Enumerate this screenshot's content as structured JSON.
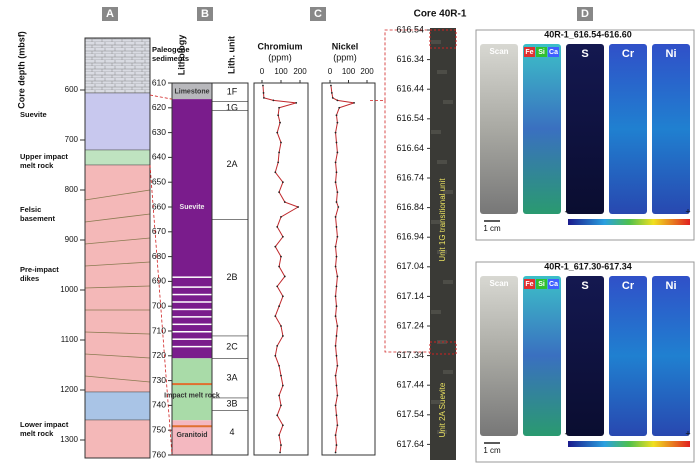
{
  "panel_a": {
    "label": "A",
    "axis_title": "Core depth (mbsf)",
    "ticks": [
      600,
      700,
      800,
      900,
      1000,
      1100,
      1200,
      1300
    ],
    "units": [
      "Paleogene sediments",
      "Suevite",
      "Upper impact melt rock",
      "Felsic basement",
      "Pre-impact dikes",
      "Lower impact melt rock"
    ]
  },
  "panel_b": {
    "label": "B",
    "lithology_title": "Lithology",
    "unit_title": "Lith. unit",
    "ticks": [
      610,
      620,
      630,
      640,
      650,
      660,
      670,
      680,
      690,
      700,
      710,
      720,
      730,
      740,
      750,
      760
    ],
    "units": [
      "1F",
      "1G",
      "2A",
      "2B",
      "2C",
      "3A",
      "3B",
      "4"
    ],
    "lithologies": [
      "Limestone",
      "Suevite",
      "Impact melt rock",
      "Granitoid"
    ]
  },
  "panel_c": {
    "label": "C",
    "depths": [
      611,
      614,
      616,
      617,
      618,
      620,
      623,
      626,
      630,
      634,
      638,
      642,
      646,
      650,
      654,
      658,
      660,
      664,
      668,
      672,
      676,
      680,
      684,
      688,
      692,
      696,
      700,
      704,
      708,
      712,
      716,
      720,
      724,
      728,
      732,
      736,
      740,
      744,
      748,
      752,
      756,
      759
    ],
    "chromium": {
      "title": "Chromium",
      "unit": "(ppm)",
      "ticks": [
        0,
        100,
        200
      ],
      "values": [
        5,
        8,
        10,
        60,
        180,
        90,
        85,
        95,
        80,
        100,
        90,
        85,
        70,
        110,
        90,
        120,
        190,
        100,
        80,
        110,
        70,
        100,
        90,
        120,
        80,
        110,
        90,
        70,
        100,
        110,
        80,
        70,
        90,
        100,
        110,
        90,
        100,
        80,
        110,
        90,
        100,
        95
      ]
    },
    "nickel": {
      "title": "Nickel",
      "unit": "(ppm)",
      "ticks": [
        0,
        100,
        200
      ],
      "values": [
        5,
        10,
        15,
        40,
        130,
        50,
        35,
        40,
        30,
        35,
        40,
        30,
        35,
        30,
        40,
        35,
        45,
        30,
        35,
        40,
        30,
        35,
        30,
        40,
        35,
        30,
        35,
        30,
        40,
        35,
        30,
        35,
        40,
        30,
        35,
        40,
        30,
        35,
        40,
        30,
        35,
        30
      ]
    }
  },
  "core": {
    "title": "Core 40R-1",
    "depths": [
      616.54,
      616.34,
      616.44,
      616.54,
      616.64,
      616.74,
      616.84,
      616.94,
      617.04,
      617.14,
      617.24,
      617.34,
      617.44,
      617.54,
      617.64
    ],
    "labels": [
      "Unit 1G transitional unit",
      "Unit 2A Suevite"
    ]
  },
  "panel_d": {
    "label": "D",
    "samples": [
      "40R-1_616.54-616.60",
      "40R-1_617.30-617.34"
    ],
    "columns": [
      "Scan",
      "S",
      "Cr",
      "Ni"
    ],
    "elements": [
      "Fe",
      "Si",
      "Ca"
    ],
    "scale": "1 cm",
    "low": "-",
    "high": "+"
  }
}
